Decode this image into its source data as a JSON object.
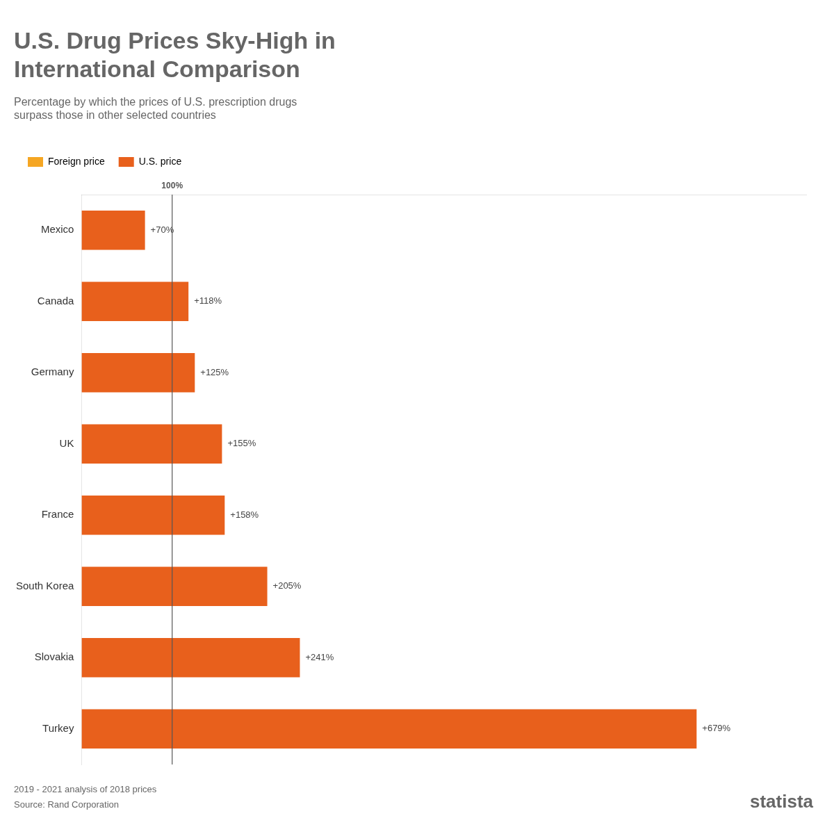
{
  "chart_data": {
    "type": "bar",
    "orientation": "horizontal",
    "title": [
      "U.S. Drug Prices Sky-High in",
      "International Comparison"
    ],
    "subtitle": "Percentage by which the prices of U.S. prescription drugs\nsurpass those in other selected countries",
    "categories": [
      "Mexico",
      "Canada",
      "Germany",
      "UK",
      "France",
      "South Korea",
      "Slovakia",
      "Turkey"
    ],
    "values": [
      70,
      118,
      125,
      155,
      158,
      205,
      241,
      679
    ],
    "value_labels": [
      "+70%",
      "+118%",
      "+125%",
      "+155%",
      "+158%",
      "+205%",
      "+241%",
      "+679%"
    ],
    "data_labels": true,
    "color": "#E8601C",
    "xlim": [
      0,
      800
    ],
    "tick_labels": "y",
    "grid": false,
    "legend": "top",
    "legend_items": [
      {
        "name": "Foreign price",
        "color": "#F5A623"
      },
      {
        "name": "U.S. price",
        "color": "#E8601C"
      }
    ],
    "annotations": [
      {
        "text": "100%",
        "x": 100
      }
    ],
    "source": [
      "2019 - 2021 analysis of 2018 prices",
      "Source: Rand Corporation"
    ],
    "credit": "statista"
  }
}
